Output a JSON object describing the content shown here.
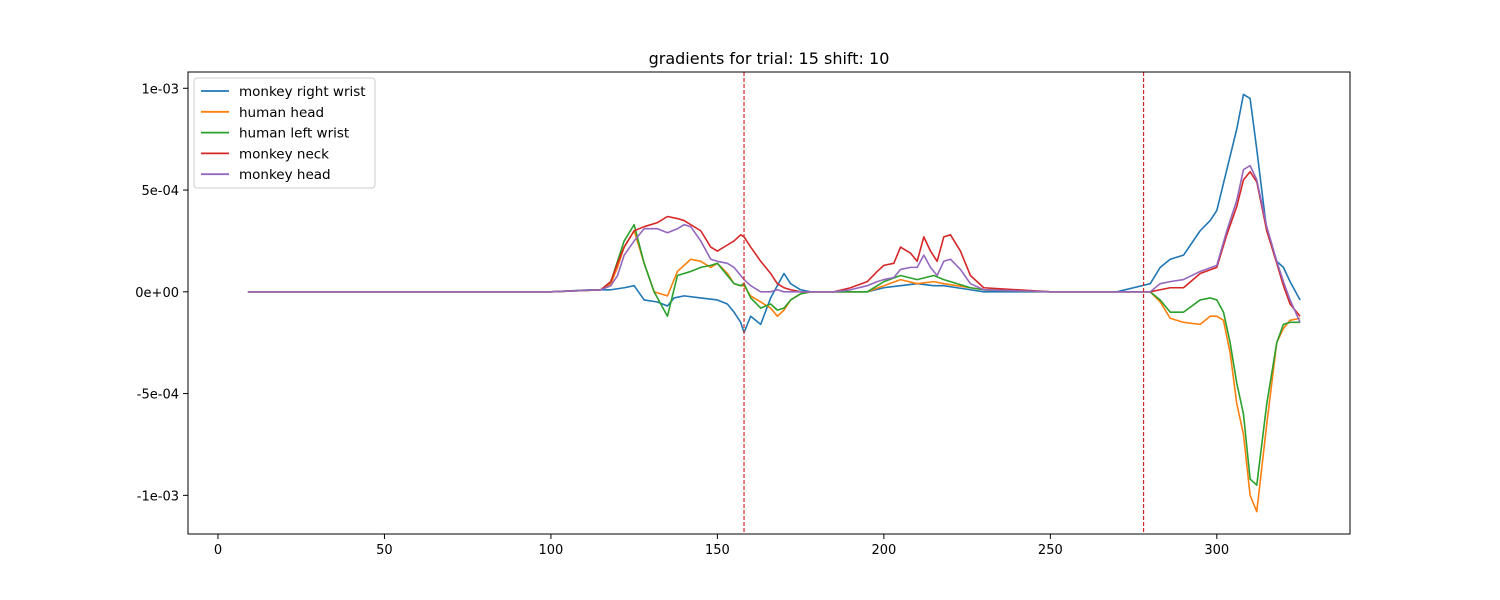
{
  "chart_data": {
    "type": "line",
    "title": "gradients for trial: 15 shift: 10",
    "xlabel": "",
    "ylabel": "",
    "xlim": [
      -9,
      340
    ],
    "ylim": [
      -0.00119,
      0.00108
    ],
    "xticks": [
      0,
      50,
      100,
      150,
      200,
      250,
      300
    ],
    "xtick_labels": [
      "0",
      "50",
      "100",
      "150",
      "200",
      "250",
      "300"
    ],
    "yticks": [
      0.001,
      0.0005,
      0,
      -0.0005,
      -0.001
    ],
    "ytick_labels": [
      "1e-03",
      "5e-04",
      "0e+00",
      "-5e-04",
      "-1e-03"
    ],
    "grid": false,
    "legend_position": "top-left",
    "vlines": [
      {
        "x": 158,
        "color": "#d62728",
        "style": "dashed"
      },
      {
        "x": 278,
        "color": "#d62728",
        "style": "dashed"
      }
    ],
    "series": [
      {
        "name": "monkey right wrist",
        "color": "#1f77b4",
        "x": [
          9,
          100,
          112,
          118,
          122,
          125,
          128,
          132,
          135,
          137,
          140,
          145,
          150,
          153,
          155,
          157,
          158,
          160,
          163,
          166,
          170,
          172,
          175,
          178,
          185,
          195,
          200,
          205,
          210,
          215,
          218,
          222,
          226,
          230,
          250,
          270,
          280,
          283,
          286,
          290,
          295,
          298,
          300,
          303,
          306,
          308,
          310,
          312,
          315,
          318,
          320,
          322,
          325
        ],
        "y": [
          0,
          0,
          1e-05,
          1e-05,
          2e-05,
          3e-05,
          -4e-05,
          -5e-05,
          -7e-05,
          -3e-05,
          -2e-05,
          -3e-05,
          -4e-05,
          -6e-05,
          -0.0001,
          -0.00015,
          -0.0002,
          -0.00012,
          -0.00016,
          -3e-05,
          9e-05,
          4e-05,
          1e-05,
          0,
          0,
          0,
          2e-05,
          3e-05,
          4e-05,
          3e-05,
          3e-05,
          2e-05,
          1e-05,
          0,
          0,
          0,
          4e-05,
          0.00012,
          0.00016,
          0.00018,
          0.0003,
          0.00035,
          0.0004,
          0.0006,
          0.0008,
          0.00097,
          0.00095,
          0.0007,
          0.0003,
          0.00015,
          0.00012,
          5e-05,
          -4e-05
        ]
      },
      {
        "name": "human head",
        "color": "#ff7f0e",
        "x": [
          9,
          100,
          115,
          118,
          120,
          122,
          125,
          128,
          131,
          135,
          138,
          142,
          145,
          148,
          150,
          153,
          155,
          157,
          158,
          160,
          163,
          166,
          168,
          170,
          172,
          175,
          178,
          185,
          195,
          200,
          205,
          210,
          215,
          218,
          222,
          226,
          230,
          250,
          270,
          280,
          283,
          286,
          290,
          295,
          298,
          300,
          302,
          304,
          306,
          308,
          310,
          312,
          315,
          318,
          320,
          322,
          325
        ],
        "y": [
          0,
          0,
          1e-05,
          4e-05,
          0.00012,
          0.00022,
          0.0003,
          0.00014,
          0,
          -2e-05,
          0.0001,
          0.00016,
          0.00015,
          0.00012,
          0.00014,
          9e-05,
          4e-05,
          3e-05,
          3e-05,
          -2e-05,
          -5e-05,
          -8e-05,
          -0.00012,
          -9e-05,
          -4e-05,
          -1e-05,
          0,
          0,
          0,
          3e-05,
          6e-05,
          4e-05,
          5e-05,
          4e-05,
          3e-05,
          2e-05,
          1e-05,
          0,
          0,
          0,
          -5e-05,
          -0.00013,
          -0.00015,
          -0.00016,
          -0.00012,
          -0.00012,
          -0.00014,
          -0.0003,
          -0.00055,
          -0.0007,
          -0.001,
          -0.00108,
          -0.00065,
          -0.00025,
          -0.00018,
          -0.00014,
          -0.00013
        ]
      },
      {
        "name": "human left wrist",
        "color": "#2ca02c",
        "x": [
          9,
          100,
          115,
          118,
          120,
          122,
          125,
          128,
          131,
          135,
          138,
          142,
          145,
          148,
          150,
          153,
          155,
          157,
          158,
          160,
          163,
          166,
          168,
          170,
          172,
          175,
          178,
          185,
          195,
          200,
          205,
          210,
          215,
          218,
          222,
          226,
          230,
          250,
          270,
          280,
          283,
          286,
          290,
          295,
          298,
          300,
          302,
          304,
          306,
          308,
          310,
          312,
          315,
          318,
          320,
          322,
          325
        ],
        "y": [
          0,
          0,
          1e-05,
          5e-05,
          0.00015,
          0.00025,
          0.00033,
          0.00014,
          0,
          -0.00012,
          8e-05,
          0.0001,
          0.00012,
          0.00013,
          0.00014,
          8e-05,
          4e-05,
          3e-05,
          4e-05,
          -3e-05,
          -8e-05,
          -6e-05,
          -9e-05,
          -8e-05,
          -4e-05,
          -1e-05,
          0,
          0,
          0,
          5e-05,
          8e-05,
          6e-05,
          8e-05,
          6e-05,
          4e-05,
          2e-05,
          1e-05,
          0,
          0,
          0,
          -4e-05,
          -0.0001,
          -0.0001,
          -4e-05,
          -3e-05,
          -4e-05,
          -0.0001,
          -0.00025,
          -0.00045,
          -0.0006,
          -0.00092,
          -0.00095,
          -0.00055,
          -0.00025,
          -0.00016,
          -0.00015,
          -0.00015
        ]
      },
      {
        "name": "monkey neck",
        "color": "#d62728",
        "x": [
          9,
          100,
          115,
          118,
          120,
          122,
          125,
          128,
          132,
          135,
          138,
          140,
          142,
          145,
          148,
          150,
          153,
          155,
          157,
          158,
          160,
          163,
          166,
          168,
          170,
          172,
          175,
          178,
          185,
          190,
          195,
          198,
          200,
          203,
          205,
          208,
          210,
          212,
          214,
          216,
          218,
          220,
          223,
          226,
          230,
          250,
          270,
          280,
          283,
          286,
          290,
          295,
          300,
          303,
          306,
          308,
          310,
          312,
          315,
          318,
          320,
          322,
          325
        ],
        "y": [
          0,
          0,
          1e-05,
          5e-05,
          0.00014,
          0.00022,
          0.0003,
          0.00032,
          0.00034,
          0.00037,
          0.00036,
          0.00035,
          0.00033,
          0.0003,
          0.00022,
          0.0002,
          0.00023,
          0.00025,
          0.00028,
          0.00027,
          0.00022,
          0.00015,
          9e-05,
          4e-05,
          2e-05,
          1e-05,
          0,
          0,
          0,
          2e-05,
          5e-05,
          0.0001,
          0.00013,
          0.00014,
          0.00022,
          0.00019,
          0.00015,
          0.00027,
          0.0002,
          0.00015,
          0.00027,
          0.00028,
          0.0002,
          8e-05,
          2e-05,
          0,
          0,
          0,
          1e-05,
          2e-05,
          2e-05,
          9e-05,
          0.00012,
          0.00028,
          0.00042,
          0.00055,
          0.00059,
          0.00054,
          0.0003,
          0.00014,
          3e-05,
          -6e-05,
          -0.00012
        ]
      },
      {
        "name": "monkey head",
        "color": "#9467bd",
        "x": [
          9,
          100,
          115,
          118,
          120,
          122,
          125,
          128,
          132,
          135,
          138,
          140,
          142,
          145,
          148,
          150,
          153,
          155,
          157,
          158,
          160,
          163,
          166,
          168,
          170,
          172,
          175,
          178,
          185,
          190,
          195,
          198,
          200,
          203,
          205,
          208,
          210,
          212,
          214,
          216,
          218,
          220,
          223,
          226,
          230,
          250,
          270,
          280,
          283,
          286,
          290,
          295,
          300,
          303,
          306,
          308,
          310,
          312,
          315,
          318,
          320,
          322,
          325
        ],
        "y": [
          0,
          0,
          1e-05,
          3e-05,
          8e-05,
          0.00018,
          0.00025,
          0.00031,
          0.00031,
          0.00029,
          0.00031,
          0.00033,
          0.00032,
          0.00025,
          0.00016,
          0.00015,
          0.00014,
          0.00012,
          8e-05,
          6e-05,
          3e-05,
          0,
          0,
          1e-05,
          0,
          0,
          0,
          0,
          0,
          1e-05,
          3e-05,
          5e-05,
          6e-05,
          7e-05,
          0.00011,
          0.00012,
          0.00012,
          0.00018,
          0.00012,
          8e-05,
          0.00015,
          0.00016,
          0.00011,
          4e-05,
          1e-05,
          0,
          0,
          0,
          4e-05,
          5e-05,
          6e-05,
          0.0001,
          0.00013,
          0.0003,
          0.00045,
          0.0006,
          0.00062,
          0.00055,
          0.00032,
          0.00015,
          5e-05,
          -4e-05,
          -0.00015
        ]
      }
    ]
  }
}
